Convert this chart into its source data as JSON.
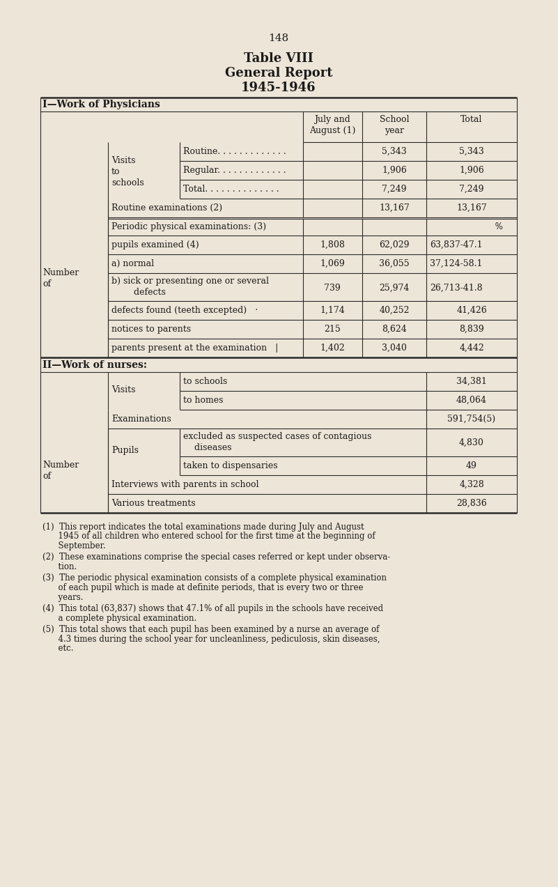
{
  "page_number": "148",
  "title_line1": "Table VIII",
  "title_line2": "General Report",
  "title_line3": "1945-1946",
  "bg_color": "#ede5d8",
  "text_color": "#1a1a1a",
  "section1_header": "I—Work of Physicians",
  "section2_header": "II—Work of nurses:",
  "footnote1_lines": [
    "(1)  This report indicates the total examinations made during July and August",
    "      1945 of all children who entered school for the first time at the beginning of",
    "      September."
  ],
  "footnote2_lines": [
    "(2)  These examinations comprise the special cases referred or kept under observa-",
    "      tion."
  ],
  "footnote3_lines": [
    "(3)  The periodic physical examination consists of a complete physical examination",
    "      of each pupil which is made at definite periods, that is every two or three",
    "      years."
  ],
  "footnote4_lines": [
    "(4)  This total (63,837) shows that 47.1% of all pupils in the schools have received",
    "      a complete physical examination."
  ],
  "footnote5_lines": [
    "(5)  This total shows that each pupil has been examined by a nurse an average of",
    "      4.3 times during the school year for uncleanliness, pediculosis, skin diseases,",
    "      etc."
  ]
}
